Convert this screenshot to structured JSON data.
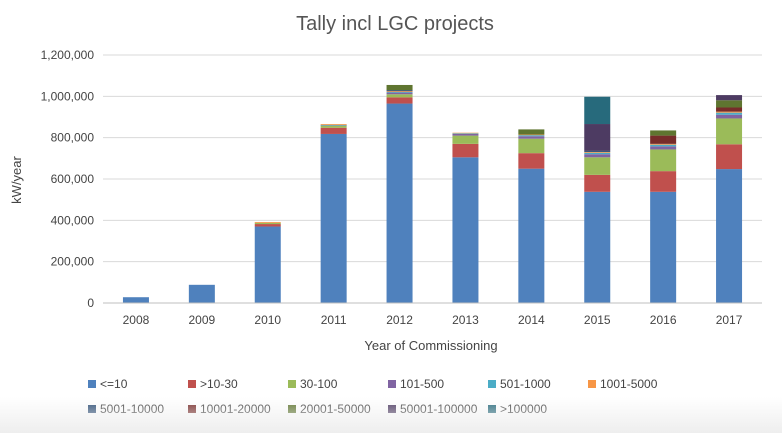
{
  "chart_data": {
    "type": "bar",
    "stacked": true,
    "title": "Tally incl LGC projects",
    "xlabel": "Year of Commissioning",
    "ylabel": "kW/year",
    "ylim": [
      0,
      1200000
    ],
    "yticks": [
      "0",
      "200,000",
      "400,000",
      "600,000",
      "800,000",
      "1,000,000",
      "1,200,000"
    ],
    "ytick_values": [
      0,
      200000,
      400000,
      600000,
      800000,
      1000000,
      1200000
    ],
    "grid": true,
    "legend_position": "bottom",
    "categories": [
      "2008",
      "2009",
      "2010",
      "2011",
      "2012",
      "2013",
      "2014",
      "2015",
      "2016",
      "2017"
    ],
    "series": [
      {
        "name": "<=10",
        "color": "#4f81bd",
        "values": [
          28000,
          88000,
          370000,
          818000,
          965000,
          705000,
          650000,
          538000,
          538000,
          648000
        ]
      },
      {
        "name": ">10-30",
        "color": "#c0504d",
        "values": [
          0,
          0,
          12000,
          30000,
          30000,
          65000,
          75000,
          82000,
          100000,
          120000
        ]
      },
      {
        "name": "30-100",
        "color": "#9bbb59",
        "values": [
          0,
          0,
          6000,
          10000,
          15000,
          40000,
          70000,
          85000,
          105000,
          125000
        ]
      },
      {
        "name": "101-500",
        "color": "#8064a2",
        "values": [
          0,
          0,
          0,
          3000,
          8000,
          8000,
          12000,
          15000,
          15000,
          18000
        ]
      },
      {
        "name": "501-1000",
        "color": "#4bacc6",
        "values": [
          0,
          0,
          0,
          1000,
          3000,
          3000,
          5000,
          7000,
          8000,
          10000
        ]
      },
      {
        "name": "1001-5000",
        "color": "#f79646",
        "values": [
          0,
          0,
          4000,
          4000,
          4000,
          3000,
          3000,
          4000,
          4000,
          5000
        ]
      },
      {
        "name": "5001-10000",
        "color": "#2c4d75",
        "values": [
          0,
          0,
          0,
          0,
          5000,
          0,
          0,
          5000,
          0,
          0
        ]
      },
      {
        "name": "10001-20000",
        "color": "#772c2a",
        "values": [
          0,
          0,
          0,
          0,
          0,
          0,
          0,
          0,
          40000,
          20000
        ]
      },
      {
        "name": "20001-50000",
        "color": "#5f7530",
        "values": [
          0,
          0,
          0,
          0,
          25000,
          0,
          25000,
          0,
          25000,
          35000
        ]
      },
      {
        "name": "50001-100000",
        "color": "#4d3b62",
        "values": [
          0,
          0,
          0,
          0,
          0,
          0,
          0,
          130000,
          0,
          25000
        ]
      },
      {
        "name": ">100000",
        "color": "#276a7c",
        "values": [
          0,
          0,
          0,
          0,
          0,
          0,
          0,
          132000,
          0,
          0
        ]
      }
    ]
  }
}
